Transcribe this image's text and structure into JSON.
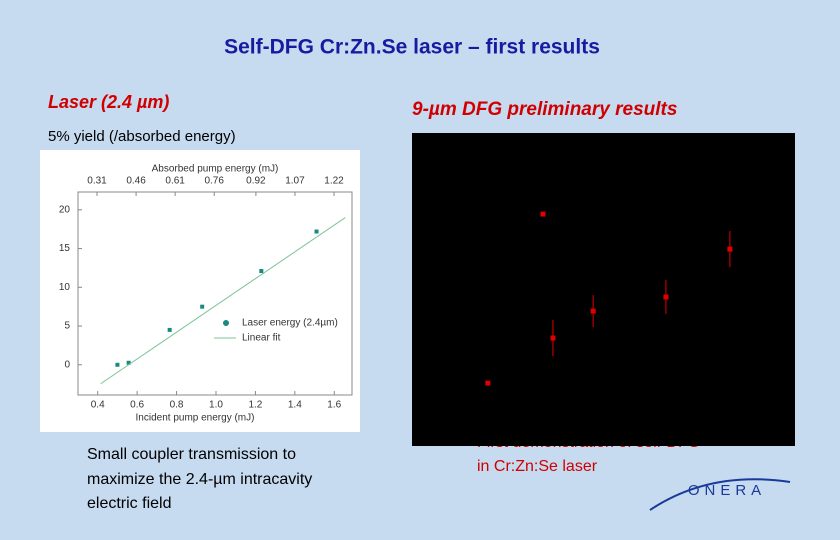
{
  "title": "Self-DFG Cr:Zn.Se laser – first results",
  "left": {
    "heading": "Laser (2.4 µm)",
    "subheading": "5% yield (/absorbed energy)",
    "note": [
      "Small coupler transmission to",
      "maximize the 2.4-µm intracavity",
      "electric field"
    ]
  },
  "right": {
    "heading": "9-µm DFG preliminary results",
    "note": [
      "First demonstration of self-DFG",
      "in Cr:Zn:Se laser"
    ]
  },
  "logo": "ONERA",
  "chart_data": [
    {
      "type": "scatter",
      "xlabel": "Incident pump energy (mJ)",
      "x2label": "Absorbed pump energy (mJ)",
      "xlim": [
        0.3,
        1.69
      ],
      "xticks": [
        0.4,
        0.6,
        0.8,
        {
          "value": 1,
          "label": "1.0"
        },
        1.2,
        1.4,
        1.6
      ],
      "x2lim": [
        0.237,
        1.289
      ],
      "x2ticks": [
        0.31,
        0.46,
        0.61,
        0.76,
        0.92,
        1.07,
        1.22
      ],
      "ylim": [
        -3.9,
        22.3
      ],
      "yticks": [
        0,
        5,
        10,
        15,
        20
      ],
      "legend": "lower right",
      "series": [
        {
          "name": "Laser energy (2.4µm)",
          "color": "#1a8a80",
          "mode": "markers",
          "x": [
            0.5,
            0.557,
            0.765,
            0.93,
            1.23,
            1.51
          ],
          "values": [
            0,
            0.26,
            4.5,
            7.5,
            12.1,
            17.2
          ]
        },
        {
          "name": "Linear fit",
          "color": "#7cc49a",
          "mode": "line",
          "x": [
            0.415,
            1.656
          ],
          "values": [
            -2.45,
            19.0
          ]
        }
      ]
    },
    {
      "type": "scatter",
      "background": "#000000",
      "xlim": [
        0,
        100
      ],
      "ylim": [
        0,
        100
      ],
      "series": [
        {
          "color": "#e00000",
          "x": [
            19.8,
            34.2,
            36.8,
            47.3,
            66.3,
            83.0
          ],
          "values": [
            20.1,
            74.1,
            34.5,
            43.1,
            47.6,
            62.9
          ],
          "errors": [
            null,
            null,
            5.8,
            5.1,
            5.4,
            5.8
          ]
        }
      ]
    }
  ]
}
